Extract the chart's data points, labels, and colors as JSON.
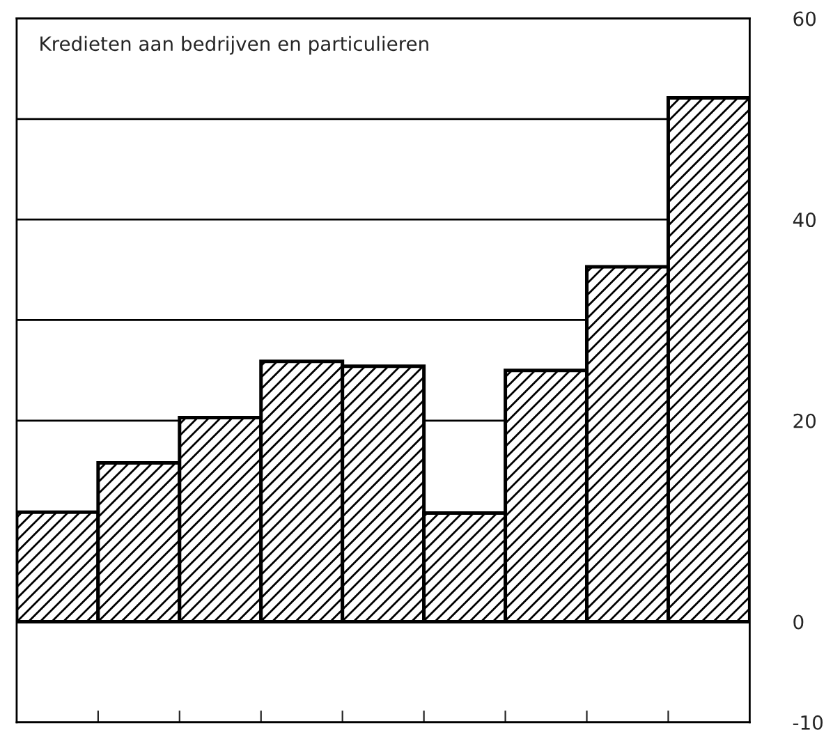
{
  "chart_data": {
    "type": "bar",
    "title": "Kredieten aan bedrijven en particulieren",
    "categories": [
      null,
      null,
      null,
      null,
      null,
      null,
      null,
      null,
      null
    ],
    "values": [
      10.9,
      15.8,
      20.3,
      25.9,
      25.4,
      10.8,
      25.0,
      35.3,
      52.1
    ],
    "color": "#000000",
    "ylim": [
      -10,
      60
    ],
    "yticks": [
      {
        "value": -10,
        "label": "-10"
      },
      0,
      20,
      {
        "value": 30,
        "label": null
      },
      40,
      {
        "value": 50,
        "label": null
      },
      60
    ],
    "grid": "y"
  }
}
